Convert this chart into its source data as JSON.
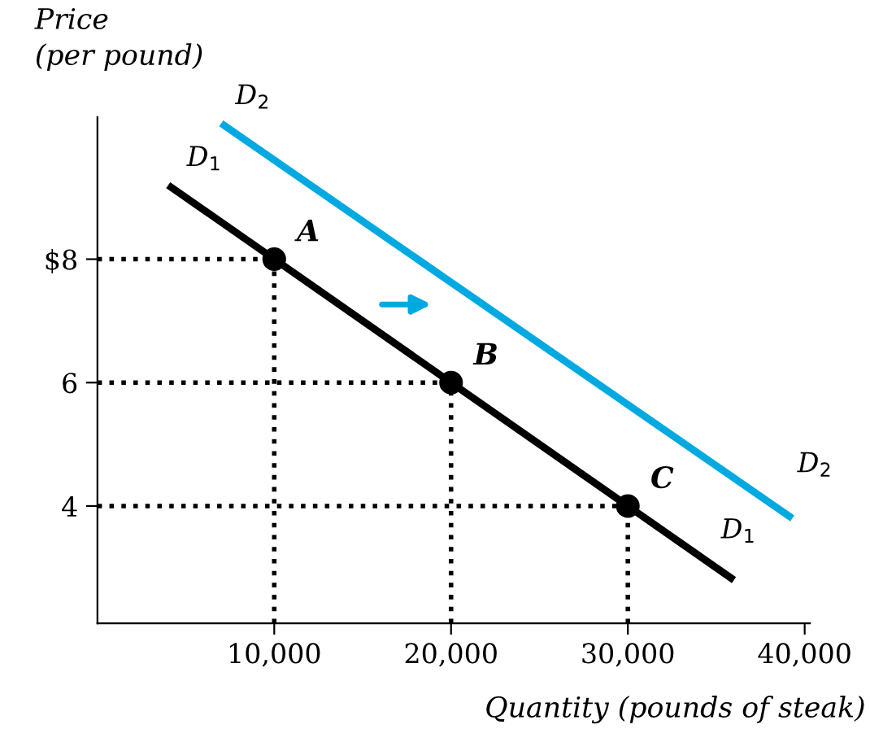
{
  "chart_data": {
    "type": "line",
    "xlabel": "Quantity (pounds of steak)",
    "ylabel": "Price\n(per pound)",
    "xlim": [
      0,
      40300
    ],
    "ylim": [
      2.1,
      10.3
    ],
    "xticks": [
      {
        "value": 10000,
        "label": "10,000"
      },
      {
        "value": 20000,
        "label": "20,000"
      },
      {
        "value": 30000,
        "label": "30,000"
      },
      {
        "value": 40000,
        "label": "40,000"
      }
    ],
    "yticks": [
      {
        "value": 4,
        "label": "4"
      },
      {
        "value": 6,
        "label": "6"
      },
      {
        "value": 8,
        "label": "$8"
      }
    ],
    "grid": false,
    "series": [
      {
        "name": "D$_{1}$",
        "color": "#000000",
        "x": [
          4000,
          36000
        ],
        "values": [
          9.2,
          2.8
        ]
      },
      {
        "name": "D$_{2}$",
        "color": "#00a9e0",
        "x": [
          7000,
          39300
        ],
        "values": [
          10.2,
          3.8
        ]
      },
      {
        "type": "scatter",
        "color": "#000000",
        "marker": "circle",
        "x": [
          10000,
          20000,
          30000
        ],
        "values": [
          8,
          6,
          4
        ]
      }
    ],
    "ref_lines": [
      {
        "axis": "y",
        "value": 8,
        "line_style": "dotted",
        "color": "#000000"
      },
      {
        "axis": "y",
        "value": 6,
        "line_style": "dotted",
        "color": "#000000"
      },
      {
        "axis": "y",
        "value": 4,
        "line_style": "dotted",
        "color": "#000000"
      },
      {
        "axis": "x",
        "value": 10000,
        "line_style": "dotted",
        "color": "#000000"
      },
      {
        "axis": "x",
        "value": 20000,
        "line_style": "dotted",
        "color": "#000000"
      },
      {
        "axis": "x",
        "value": 30000,
        "line_style": "dotted",
        "color": "#000000"
      }
    ],
    "annotations": [
      {
        "text": "A",
        "x": 10000,
        "y": 8
      },
      {
        "text": "B",
        "x": 20000,
        "y": 6
      },
      {
        "text": "C",
        "x": 30000,
        "y": 4
      }
    ]
  }
}
